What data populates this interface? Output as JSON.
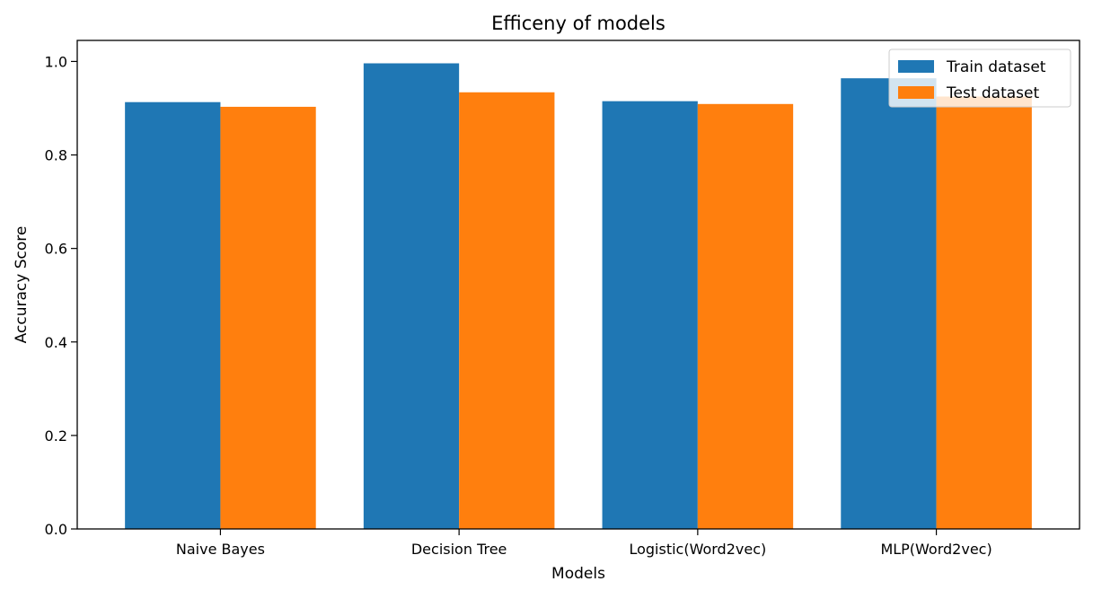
{
  "chart_data": {
    "type": "bar",
    "title": "Efficeny of models",
    "xlabel": "Models",
    "ylabel": "Accuracy Score",
    "categories": [
      "Naive Bayes",
      "Decision Tree",
      "Logistic(Word2vec)",
      "MLP(Word2vec)"
    ],
    "series": [
      {
        "name": "Train dataset",
        "color": "#1f77b4",
        "values": [
          0.913,
          0.996,
          0.915,
          0.964
        ]
      },
      {
        "name": "Test dataset",
        "color": "#ff7f0e",
        "values": [
          0.903,
          0.934,
          0.909,
          0.925
        ]
      }
    ],
    "ylim": [
      0,
      1.045
    ],
    "yticks": [
      "0.0",
      "0.2",
      "0.4",
      "0.6",
      "0.8",
      "1.0"
    ],
    "grid": false,
    "legend_position": "top-right"
  }
}
